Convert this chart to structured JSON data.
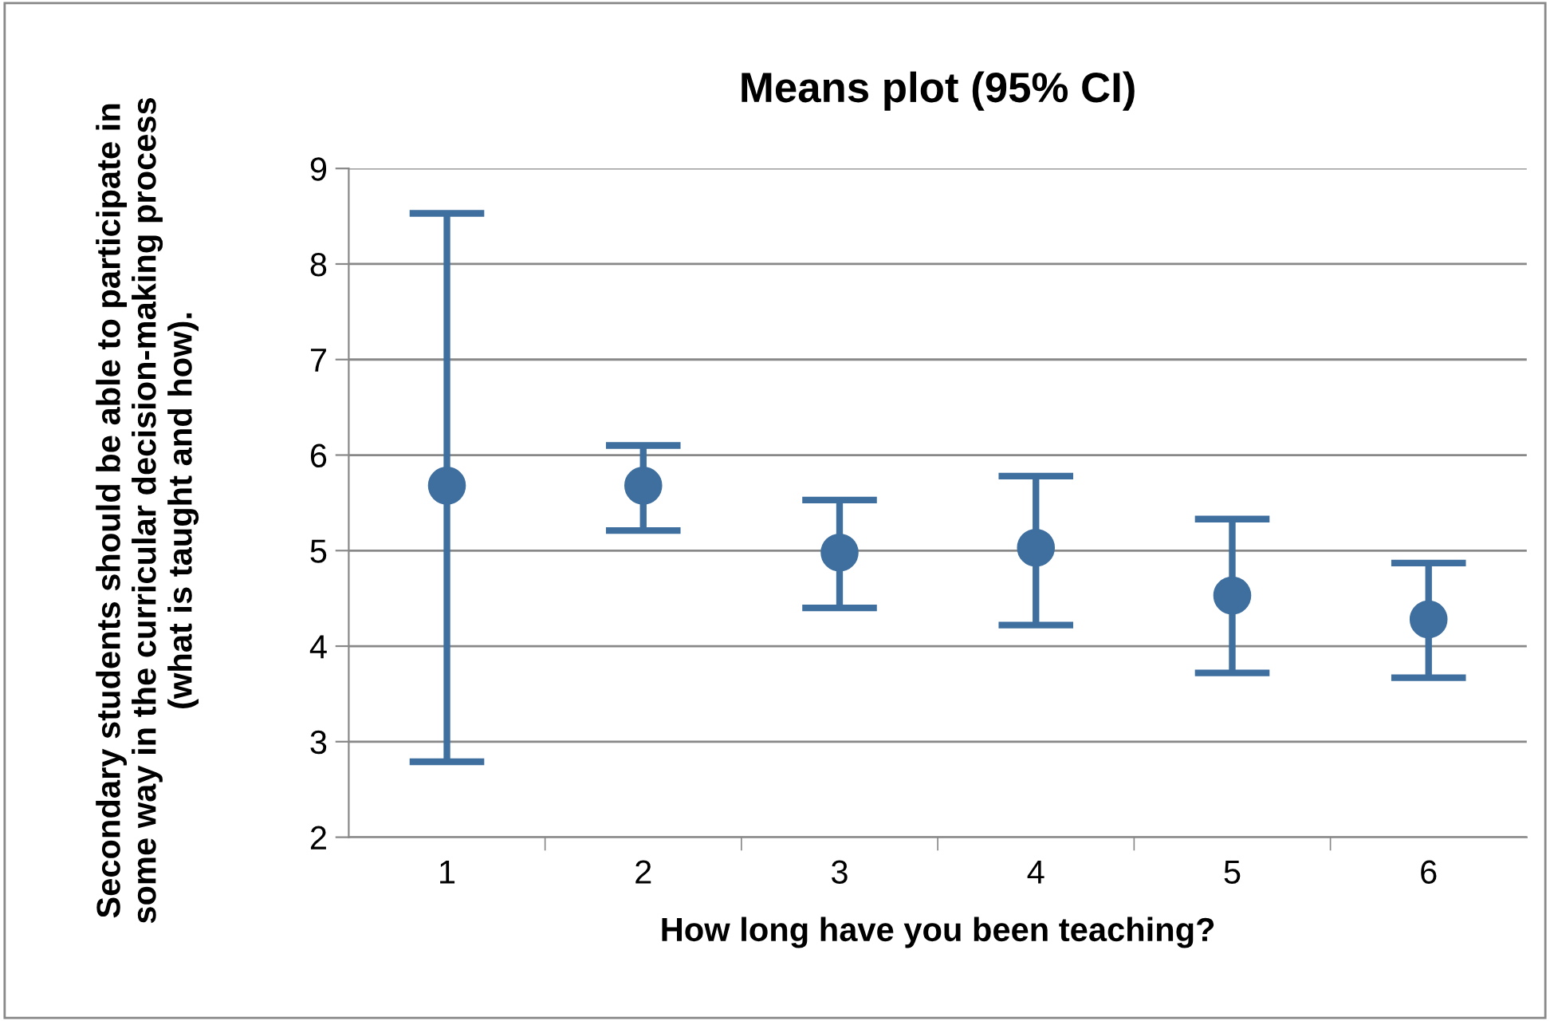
{
  "chart_data": {
    "type": "scatter",
    "title": "Means plot (95% CI)",
    "xlabel": "How long have you been teaching?",
    "ylabel": "Secondary students should be able to participate in some way in the curricular decision-making process (what is taught and how).",
    "categories": [
      "1",
      "2",
      "3",
      "4",
      "5",
      "6"
    ],
    "series": [
      {
        "color": "#3e6f9f",
        "values": [
          5.68,
          5.68,
          4.98,
          5.03,
          4.53,
          4.28
        ],
        "errors": [
          [
            2.79,
            8.53
          ],
          [
            5.21,
            6.1
          ],
          [
            4.4,
            5.53
          ],
          [
            4.22,
            5.78
          ],
          [
            3.72,
            5.33
          ],
          [
            3.67,
            4.87
          ]
        ]
      }
    ],
    "ylim": [
      2,
      9
    ],
    "yticks": [
      2,
      3,
      4,
      5,
      6,
      7,
      8,
      9
    ],
    "grid": "y",
    "marker": "circle",
    "legend": false
  }
}
